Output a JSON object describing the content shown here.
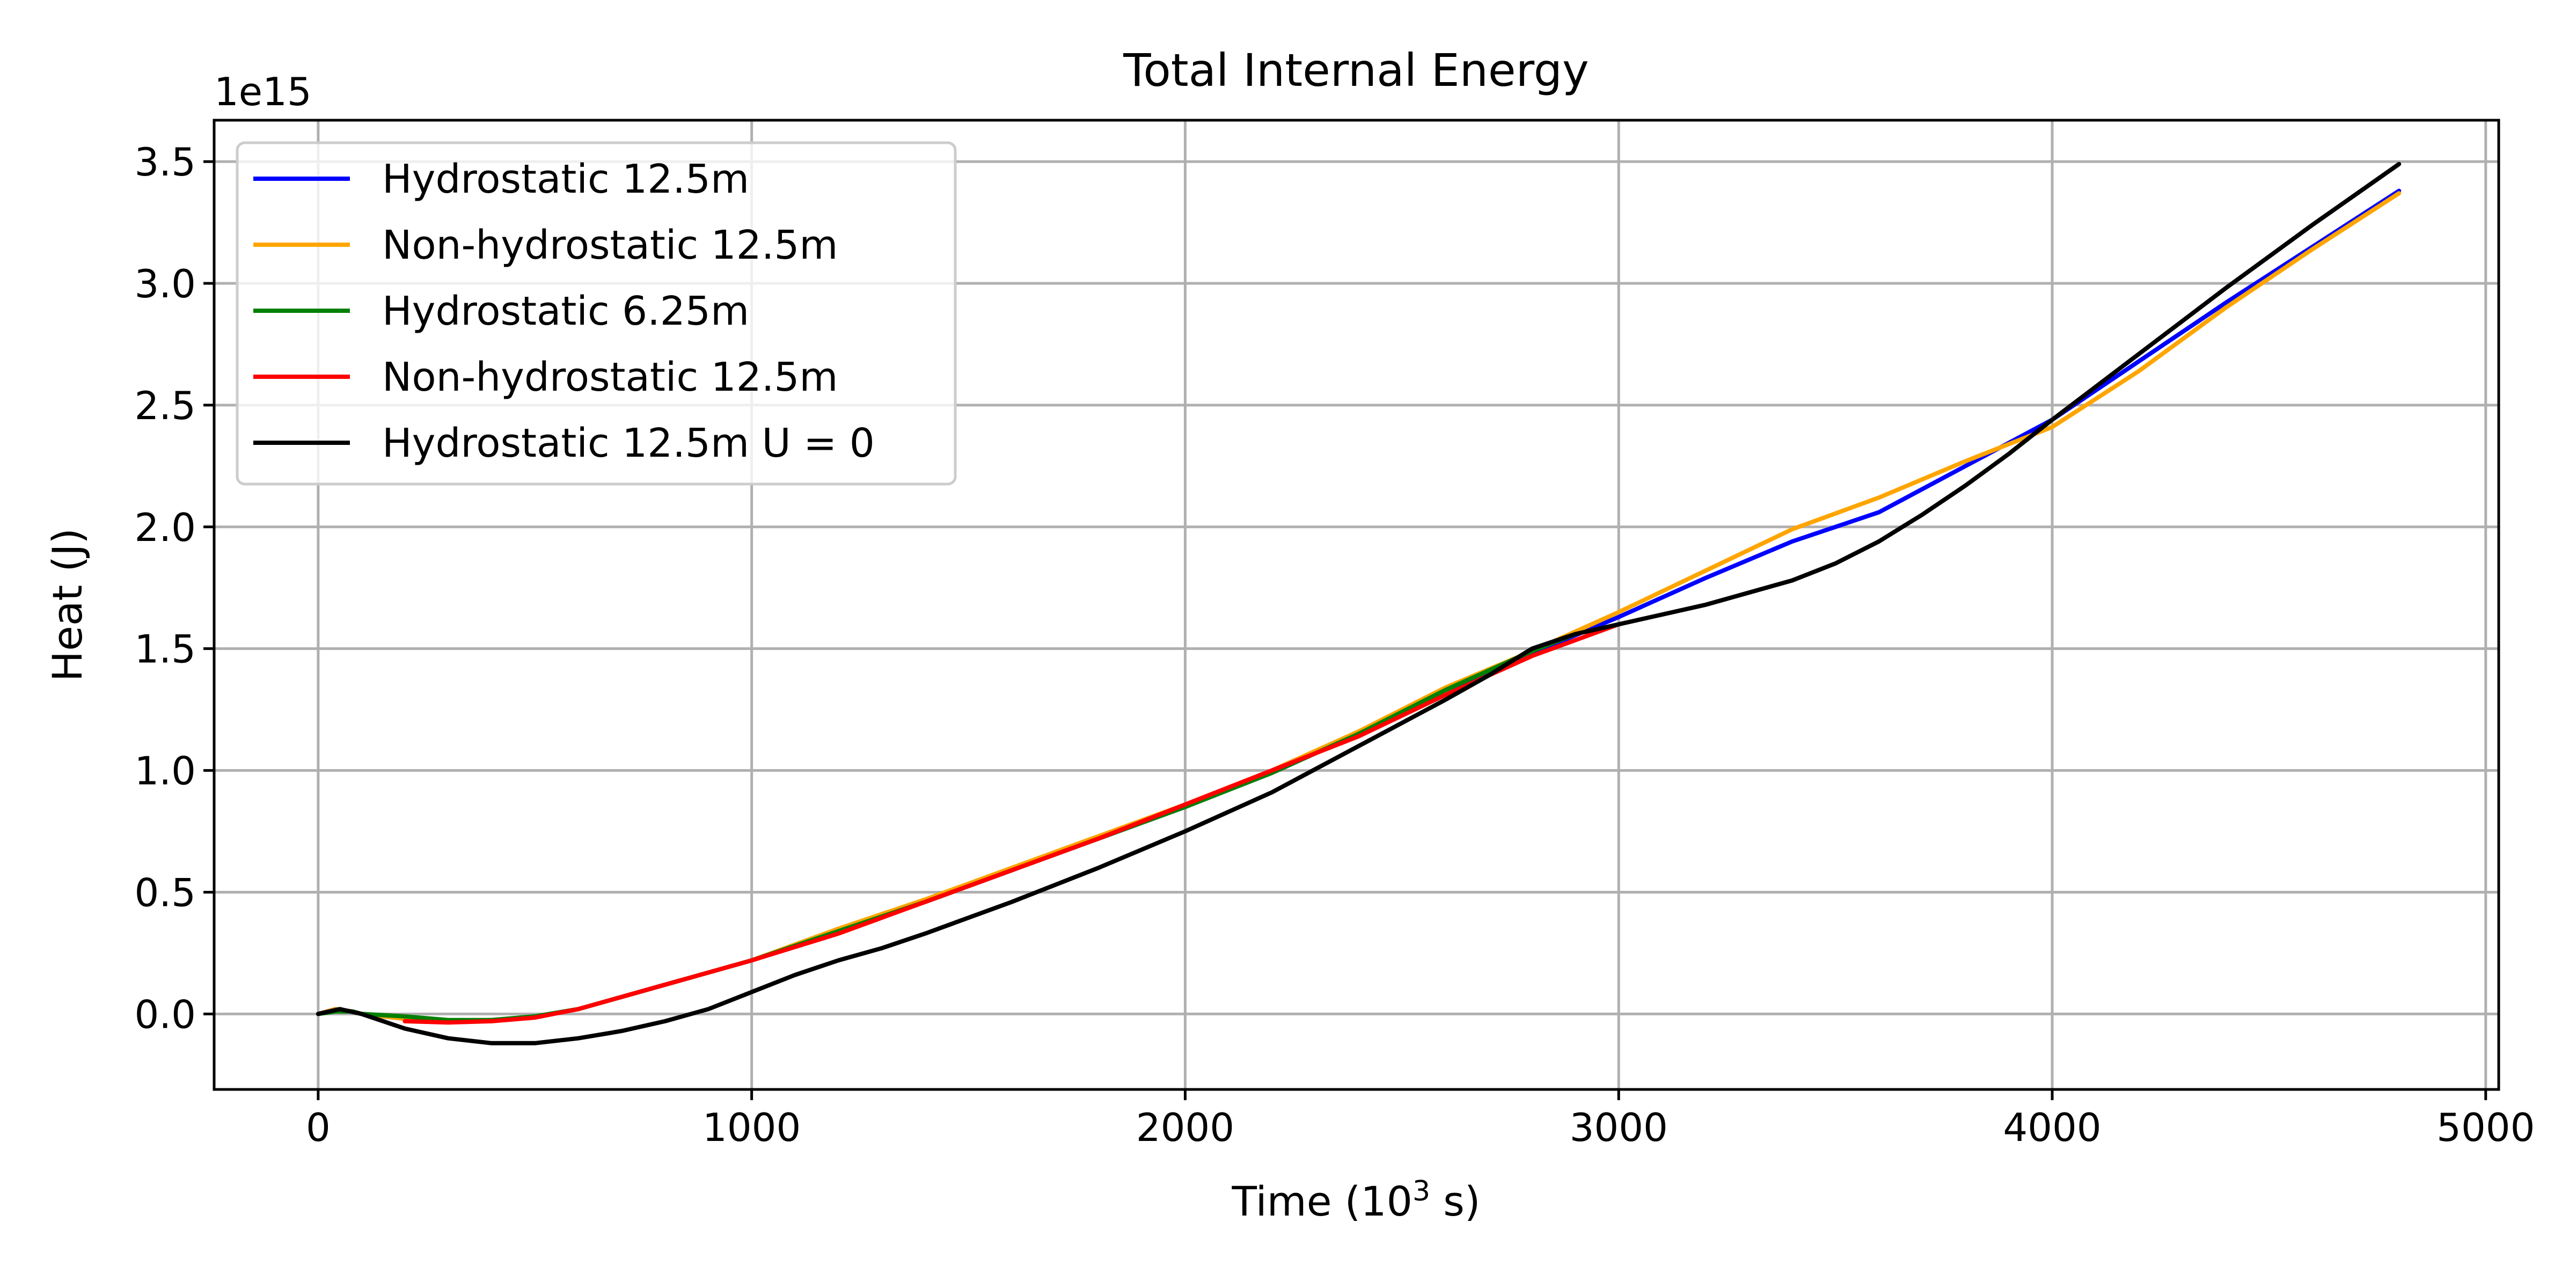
{
  "chart_data": {
    "type": "line",
    "title": "Total Internal Energy",
    "xlabel_main": "Time (10",
    "xlabel_sup": "3",
    "xlabel_end": " s)",
    "ylabel": "Heat (J)",
    "y_offset_label": "1e15",
    "xlim": [
      -240,
      5030
    ],
    "ylim": [
      -0.31,
      3.67
    ],
    "xticks": [
      0,
      1000,
      2000,
      3000,
      4000,
      5000
    ],
    "yticks": [
      0.0,
      0.5,
      1.0,
      1.5,
      2.0,
      2.5,
      3.0,
      3.5
    ],
    "xtick_labels": [
      "0",
      "1000",
      "2000",
      "3000",
      "4000",
      "5000"
    ],
    "ytick_labels": [
      "0.0",
      "0.5",
      "1.0",
      "1.5",
      "2.0",
      "2.5",
      "3.0",
      "3.5"
    ],
    "grid": true,
    "legend_position": "upper-left",
    "series": [
      {
        "name": "Hydrostatic 12.5m",
        "color": "#0000ff",
        "x": [
          0,
          40,
          80,
          100,
          200,
          300,
          400,
          500,
          600,
          700,
          800,
          900,
          1000,
          1200,
          1400,
          1600,
          1800,
          2000,
          2200,
          2400,
          2600,
          2800,
          3000,
          3200,
          3400,
          3600,
          3800,
          4000,
          4200,
          4400,
          4600,
          4800
        ],
        "y": [
          0.0,
          0.02,
          0.01,
          0.0,
          -0.02,
          -0.03,
          -0.025,
          -0.01,
          0.02,
          0.07,
          0.12,
          0.17,
          0.22,
          0.34,
          0.46,
          0.59,
          0.72,
          0.85,
          0.99,
          1.15,
          1.33,
          1.48,
          1.63,
          1.79,
          1.94,
          2.06,
          2.25,
          2.44,
          2.68,
          2.92,
          3.15,
          3.38
        ]
      },
      {
        "name": "Non-hydrostatic 12.5m",
        "color": "#ffa500",
        "x": [
          0,
          40,
          80,
          100,
          200,
          300,
          400,
          500,
          600,
          700,
          800,
          900,
          1000,
          1200,
          1400,
          1600,
          1800,
          2000,
          2200,
          2400,
          2600,
          2800,
          3000,
          3200,
          3400,
          3600,
          3800,
          4000,
          4200,
          4400,
          4600,
          4800
        ],
        "y": [
          0.0,
          0.02,
          0.01,
          0.0,
          -0.02,
          -0.03,
          -0.025,
          -0.01,
          0.02,
          0.07,
          0.12,
          0.17,
          0.22,
          0.35,
          0.47,
          0.6,
          0.73,
          0.86,
          1.0,
          1.16,
          1.34,
          1.49,
          1.65,
          1.82,
          1.99,
          2.12,
          2.27,
          2.41,
          2.64,
          2.9,
          3.14,
          3.37
        ]
      },
      {
        "name": "Hydrostatic 6.25m",
        "color": "#008000",
        "x": [
          0,
          40,
          80,
          100,
          200,
          300,
          400,
          500,
          600,
          700,
          800,
          900,
          1000,
          1200,
          1400,
          1600,
          1800,
          2000,
          2200,
          2400,
          2600,
          2800,
          2900
        ],
        "y": [
          0.0,
          0.01,
          0.01,
          0.0,
          -0.01,
          -0.025,
          -0.025,
          -0.01,
          0.02,
          0.07,
          0.12,
          0.17,
          0.22,
          0.34,
          0.46,
          0.59,
          0.72,
          0.85,
          0.99,
          1.15,
          1.33,
          1.49,
          1.56
        ]
      },
      {
        "name": "Non-hydrostatic 12.5m",
        "color": "#ff0000",
        "x": [
          200,
          300,
          400,
          500,
          600,
          700,
          800,
          900,
          1000,
          1200,
          1400,
          1600,
          1800,
          2000,
          2200,
          2400,
          2600,
          2800,
          3000
        ],
        "y": [
          -0.03,
          -0.035,
          -0.03,
          -0.015,
          0.02,
          0.07,
          0.12,
          0.17,
          0.22,
          0.33,
          0.46,
          0.59,
          0.72,
          0.86,
          1.0,
          1.14,
          1.31,
          1.47,
          1.6
        ]
      },
      {
        "name": "Hydrostatic 12.5m U = 0",
        "color": "#000000",
        "x": [
          0,
          50,
          100,
          200,
          300,
          400,
          500,
          600,
          700,
          800,
          900,
          1000,
          1100,
          1200,
          1300,
          1400,
          1600,
          1800,
          2000,
          2200,
          2400,
          2600,
          2700,
          2800,
          2900,
          3000,
          3200,
          3400,
          3500,
          3600,
          3700,
          3800,
          3900,
          4000,
          4200,
          4400,
          4600,
          4800
        ],
        "y": [
          0.0,
          0.02,
          0.0,
          -0.06,
          -0.1,
          -0.12,
          -0.12,
          -0.1,
          -0.07,
          -0.03,
          0.02,
          0.09,
          0.16,
          0.22,
          0.27,
          0.33,
          0.46,
          0.6,
          0.75,
          0.91,
          1.1,
          1.29,
          1.39,
          1.5,
          1.56,
          1.6,
          1.68,
          1.78,
          1.85,
          1.94,
          2.05,
          2.17,
          2.3,
          2.44,
          2.71,
          2.98,
          3.24,
          3.49
        ]
      }
    ]
  }
}
